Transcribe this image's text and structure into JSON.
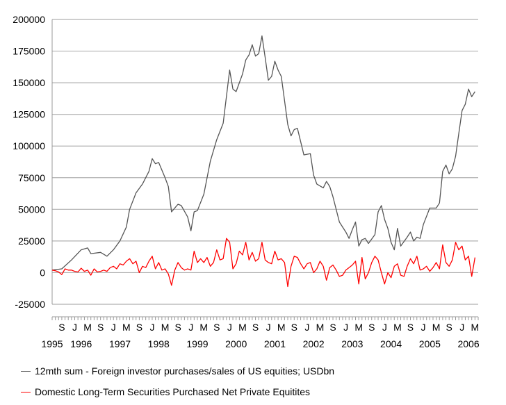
{
  "chart_data": {
    "type": "line",
    "title": "",
    "xlabel": "",
    "ylabel": "",
    "ylim": [
      -25000,
      200000
    ],
    "yticks": [
      200000,
      175000,
      150000,
      125000,
      100000,
      75000,
      50000,
      25000,
      0,
      -25000
    ],
    "ytick_labels": [
      "200000",
      "175000",
      "150000",
      "125000",
      "100000",
      "75000",
      "50000",
      "25000",
      "0",
      "-25000"
    ],
    "grid": "horizontal",
    "x_start": "1995-06",
    "x_end": "2006-06",
    "month_ticks": [
      {
        "label": "S",
        "date": "1995-09"
      },
      {
        "label": "J",
        "date": "1996-01"
      },
      {
        "label": "M",
        "date": "1996-05"
      },
      {
        "label": "S",
        "date": "1996-09"
      },
      {
        "label": "J",
        "date": "1997-01"
      },
      {
        "label": "M",
        "date": "1997-05"
      },
      {
        "label": "S",
        "date": "1997-09"
      },
      {
        "label": "J",
        "date": "1998-01"
      },
      {
        "label": "M",
        "date": "1998-05"
      },
      {
        "label": "S",
        "date": "1998-09"
      },
      {
        "label": "J",
        "date": "1999-01"
      },
      {
        "label": "M",
        "date": "1999-05"
      },
      {
        "label": "S",
        "date": "1999-09"
      },
      {
        "label": "J",
        "date": "2000-01"
      },
      {
        "label": "M",
        "date": "2000-05"
      },
      {
        "label": "S",
        "date": "2000-09"
      },
      {
        "label": "J",
        "date": "2001-01"
      },
      {
        "label": "M",
        "date": "2001-05"
      },
      {
        "label": "S",
        "date": "2001-09"
      },
      {
        "label": "J",
        "date": "2002-01"
      },
      {
        "label": "M",
        "date": "2002-05"
      },
      {
        "label": "S",
        "date": "2002-09"
      },
      {
        "label": "J",
        "date": "2003-01"
      },
      {
        "label": "M",
        "date": "2003-05"
      },
      {
        "label": "S",
        "date": "2003-09"
      },
      {
        "label": "J",
        "date": "2004-01"
      },
      {
        "label": "M",
        "date": "2004-05"
      },
      {
        "label": "S",
        "date": "2004-09"
      },
      {
        "label": "J",
        "date": "2005-01"
      },
      {
        "label": "M",
        "date": "2005-05"
      },
      {
        "label": "S",
        "date": "2005-09"
      },
      {
        "label": "J",
        "date": "2006-01"
      },
      {
        "label": "M",
        "date": "2006-05"
      }
    ],
    "year_labels": [
      {
        "label": "1995",
        "date": "1995-06"
      },
      {
        "label": "1996",
        "date": "1996-03"
      },
      {
        "label": "1997",
        "date": "1997-03"
      },
      {
        "label": "1998",
        "date": "1998-03"
      },
      {
        "label": "1999",
        "date": "1999-03"
      },
      {
        "label": "2000",
        "date": "2000-03"
      },
      {
        "label": "2001",
        "date": "2001-03"
      },
      {
        "label": "2002",
        "date": "2002-03"
      },
      {
        "label": "2003",
        "date": "2003-03"
      },
      {
        "label": "2004",
        "date": "2004-03"
      },
      {
        "label": "2005",
        "date": "2005-03"
      },
      {
        "label": "2006",
        "date": "2006-03"
      }
    ],
    "legend_position": "bottom",
    "series": [
      {
        "name": "12mth sum - Foreign investor purchases/sales of US equities; USDbn",
        "color": "#555555",
        "points": [
          [
            "1995-06",
            2000
          ],
          [
            "1995-09",
            3000
          ],
          [
            "1995-12",
            10000
          ],
          [
            "1996-03",
            18000
          ],
          [
            "1996-05",
            19500
          ],
          [
            "1996-06",
            15000
          ],
          [
            "1996-09",
            16000
          ],
          [
            "1996-11",
            13000
          ],
          [
            "1997-01",
            18000
          ],
          [
            "1997-03",
            25000
          ],
          [
            "1997-05",
            36000
          ],
          [
            "1997-06",
            50000
          ],
          [
            "1997-08",
            63000
          ],
          [
            "1997-10",
            70000
          ],
          [
            "1997-12",
            80000
          ],
          [
            "1998-01",
            90000
          ],
          [
            "1998-02",
            86000
          ],
          [
            "1998-03",
            87000
          ],
          [
            "1998-05",
            75000
          ],
          [
            "1998-06",
            68000
          ],
          [
            "1998-07",
            48000
          ],
          [
            "1998-09",
            54000
          ],
          [
            "1998-10",
            53000
          ],
          [
            "1998-12",
            44000
          ],
          [
            "1999-01",
            33000
          ],
          [
            "1999-02",
            48000
          ],
          [
            "1999-03",
            49000
          ],
          [
            "1999-05",
            62000
          ],
          [
            "1999-07",
            88000
          ],
          [
            "1999-09",
            105000
          ],
          [
            "1999-11",
            118000
          ],
          [
            "2000-01",
            160000
          ],
          [
            "2000-02",
            145000
          ],
          [
            "2000-03",
            143000
          ],
          [
            "2000-05",
            157000
          ],
          [
            "2000-06",
            168000
          ],
          [
            "2000-07",
            172000
          ],
          [
            "2000-08",
            180000
          ],
          [
            "2000-09",
            171000
          ],
          [
            "2000-10",
            173000
          ],
          [
            "2000-11",
            187000
          ],
          [
            "2000-12",
            170000
          ],
          [
            "2001-01",
            152000
          ],
          [
            "2001-02",
            155000
          ],
          [
            "2001-03",
            167000
          ],
          [
            "2001-04",
            160000
          ],
          [
            "2001-05",
            155000
          ],
          [
            "2001-07",
            117000
          ],
          [
            "2001-08",
            108000
          ],
          [
            "2001-09",
            113000
          ],
          [
            "2001-10",
            114000
          ],
          [
            "2001-12",
            93000
          ],
          [
            "2002-02",
            94000
          ],
          [
            "2002-03",
            77000
          ],
          [
            "2002-04",
            70000
          ],
          [
            "2002-06",
            67000
          ],
          [
            "2002-07",
            72000
          ],
          [
            "2002-08",
            68000
          ],
          [
            "2002-09",
            60000
          ],
          [
            "2002-11",
            40000
          ],
          [
            "2003-01",
            32000
          ],
          [
            "2003-02",
            27000
          ],
          [
            "2003-03",
            34000
          ],
          [
            "2003-04",
            40000
          ],
          [
            "2003-05",
            21000
          ],
          [
            "2003-06",
            26000
          ],
          [
            "2003-07",
            27000
          ],
          [
            "2003-08",
            23000
          ],
          [
            "2003-10",
            30000
          ],
          [
            "2003-11",
            48000
          ],
          [
            "2003-12",
            53000
          ],
          [
            "2004-01",
            42000
          ],
          [
            "2004-02",
            35000
          ],
          [
            "2004-03",
            24000
          ],
          [
            "2004-04",
            18000
          ],
          [
            "2004-05",
            35000
          ],
          [
            "2004-06",
            21000
          ],
          [
            "2004-08",
            28000
          ],
          [
            "2004-09",
            32000
          ],
          [
            "2004-10",
            25000
          ],
          [
            "2004-11",
            28000
          ],
          [
            "2004-12",
            27000
          ],
          [
            "2005-01",
            38000
          ],
          [
            "2005-03",
            51000
          ],
          [
            "2005-05",
            51000
          ],
          [
            "2005-06",
            55000
          ],
          [
            "2005-07",
            80000
          ],
          [
            "2005-08",
            85000
          ],
          [
            "2005-09",
            78000
          ],
          [
            "2005-10",
            82000
          ],
          [
            "2005-11",
            92000
          ],
          [
            "2005-12",
            110000
          ],
          [
            "2006-01",
            128000
          ],
          [
            "2006-02",
            133000
          ],
          [
            "2006-03",
            145000
          ],
          [
            "2006-04",
            139000
          ],
          [
            "2006-05",
            143000
          ]
        ]
      },
      {
        "name": "Domestic Long-Term Securities Purchased Net Private Equitites",
        "color": "#ff0000",
        "points": [
          [
            "1995-06",
            2000
          ],
          [
            "1995-07",
            1500
          ],
          [
            "1995-08",
            500
          ],
          [
            "1995-09",
            -1500
          ],
          [
            "1995-10",
            3000
          ],
          [
            "1995-11",
            2000
          ],
          [
            "1995-12",
            2000
          ],
          [
            "1996-01",
            1000
          ],
          [
            "1996-02",
            500
          ],
          [
            "1996-03",
            3500
          ],
          [
            "1996-04",
            1000
          ],
          [
            "1996-05",
            2000
          ],
          [
            "1996-06",
            -2000
          ],
          [
            "1996-07",
            3000
          ],
          [
            "1996-08",
            500
          ],
          [
            "1996-09",
            1000
          ],
          [
            "1996-10",
            2000
          ],
          [
            "1996-11",
            1000
          ],
          [
            "1996-12",
            4000
          ],
          [
            "1997-01",
            5000
          ],
          [
            "1997-02",
            3000
          ],
          [
            "1997-03",
            7000
          ],
          [
            "1997-04",
            6000
          ],
          [
            "1997-05",
            9000
          ],
          [
            "1997-06",
            11000
          ],
          [
            "1997-07",
            7000
          ],
          [
            "1997-08",
            9000
          ],
          [
            "1997-09",
            0
          ],
          [
            "1997-10",
            5000
          ],
          [
            "1997-11",
            4000
          ],
          [
            "1997-12",
            9000
          ],
          [
            "1998-01",
            13000
          ],
          [
            "1998-02",
            3000
          ],
          [
            "1998-03",
            8000
          ],
          [
            "1998-04",
            2000
          ],
          [
            "1998-05",
            3000
          ],
          [
            "1998-06",
            -1000
          ],
          [
            "1998-07",
            -10000
          ],
          [
            "1998-08",
            2000
          ],
          [
            "1998-09",
            8000
          ],
          [
            "1998-10",
            4000
          ],
          [
            "1998-11",
            2000
          ],
          [
            "1998-12",
            3000
          ],
          [
            "1999-01",
            2000
          ],
          [
            "1999-02",
            17000
          ],
          [
            "1999-03",
            8000
          ],
          [
            "1999-04",
            11000
          ],
          [
            "1999-05",
            8000
          ],
          [
            "1999-06",
            12000
          ],
          [
            "1999-07",
            5000
          ],
          [
            "1999-08",
            8000
          ],
          [
            "1999-09",
            18000
          ],
          [
            "1999-10",
            10000
          ],
          [
            "1999-11",
            11000
          ],
          [
            "1999-12",
            27000
          ],
          [
            "2000-01",
            24000
          ],
          [
            "2000-02",
            3000
          ],
          [
            "2000-03",
            7000
          ],
          [
            "2000-04",
            17000
          ],
          [
            "2000-05",
            14000
          ],
          [
            "2000-06",
            24000
          ],
          [
            "2000-07",
            10000
          ],
          [
            "2000-08",
            16000
          ],
          [
            "2000-09",
            9000
          ],
          [
            "2000-10",
            11000
          ],
          [
            "2000-11",
            24000
          ],
          [
            "2000-12",
            10000
          ],
          [
            "2001-01",
            8000
          ],
          [
            "2001-02",
            7000
          ],
          [
            "2001-03",
            17000
          ],
          [
            "2001-04",
            10000
          ],
          [
            "2001-05",
            11000
          ],
          [
            "2001-06",
            8000
          ],
          [
            "2001-07",
            -11000
          ],
          [
            "2001-08",
            5000
          ],
          [
            "2001-09",
            13000
          ],
          [
            "2001-10",
            12000
          ],
          [
            "2001-11",
            7000
          ],
          [
            "2001-12",
            3000
          ],
          [
            "2002-01",
            7000
          ],
          [
            "2002-02",
            8000
          ],
          [
            "2002-03",
            0
          ],
          [
            "2002-04",
            3000
          ],
          [
            "2002-05",
            9000
          ],
          [
            "2002-06",
            5000
          ],
          [
            "2002-07",
            -6000
          ],
          [
            "2002-08",
            4000
          ],
          [
            "2002-09",
            6000
          ],
          [
            "2002-10",
            2000
          ],
          [
            "2002-11",
            -3000
          ],
          [
            "2002-12",
            -2000
          ],
          [
            "2003-01",
            2000
          ],
          [
            "2003-02",
            4000
          ],
          [
            "2003-03",
            6000
          ],
          [
            "2003-04",
            9000
          ],
          [
            "2003-05",
            -9000
          ],
          [
            "2003-06",
            12000
          ],
          [
            "2003-07",
            -5000
          ],
          [
            "2003-08",
            0
          ],
          [
            "2003-09",
            8000
          ],
          [
            "2003-10",
            13000
          ],
          [
            "2003-11",
            10000
          ],
          [
            "2003-12",
            0
          ],
          [
            "2004-01",
            -9000
          ],
          [
            "2004-02",
            0
          ],
          [
            "2004-03",
            -4000
          ],
          [
            "2004-04",
            5000
          ],
          [
            "2004-05",
            7000
          ],
          [
            "2004-06",
            -2000
          ],
          [
            "2004-07",
            -3000
          ],
          [
            "2004-08",
            5000
          ],
          [
            "2004-09",
            11000
          ],
          [
            "2004-10",
            7000
          ],
          [
            "2004-11",
            13000
          ],
          [
            "2004-12",
            2000
          ],
          [
            "2005-01",
            3000
          ],
          [
            "2005-02",
            5000
          ],
          [
            "2005-03",
            1000
          ],
          [
            "2005-04",
            4000
          ],
          [
            "2005-05",
            8000
          ],
          [
            "2005-06",
            3000
          ],
          [
            "2005-07",
            22000
          ],
          [
            "2005-08",
            8000
          ],
          [
            "2005-09",
            5000
          ],
          [
            "2005-10",
            10000
          ],
          [
            "2005-11",
            24000
          ],
          [
            "2005-12",
            18000
          ],
          [
            "2006-01",
            21000
          ],
          [
            "2006-02",
            10000
          ],
          [
            "2006-03",
            13000
          ],
          [
            "2006-04",
            -3000
          ],
          [
            "2006-05",
            12000
          ]
        ]
      }
    ]
  }
}
